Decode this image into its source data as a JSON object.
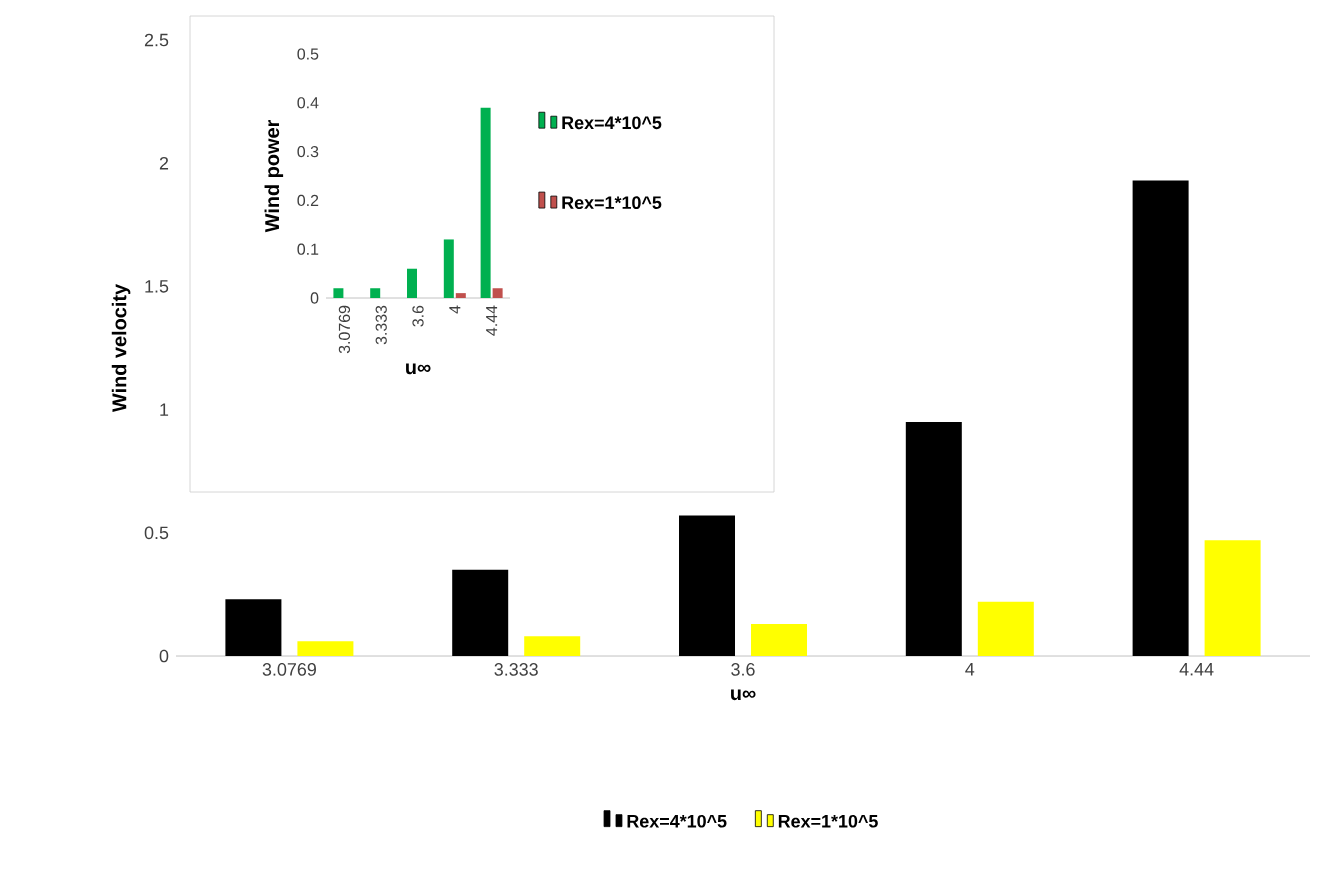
{
  "chart_data": [
    {
      "type": "bar",
      "xlabel": "u∞",
      "ylabel": "Wind velocity",
      "categories": [
        "3.0769",
        "3.333",
        "3.6",
        "4",
        "4.44"
      ],
      "series": [
        {
          "name": "Rex=4*10^5",
          "color": "#000000",
          "values": [
            0.23,
            0.35,
            0.57,
            0.95,
            1.93
          ]
        },
        {
          "name": "Rex=1*10^5",
          "color": "#ffff00",
          "values": [
            0.06,
            0.08,
            0.13,
            0.22,
            0.47
          ]
        }
      ],
      "ylim": [
        0,
        2.5
      ],
      "yticks": [
        0,
        0.5,
        1,
        1.5,
        2,
        2.5
      ],
      "grid": false,
      "legend": "bottom"
    },
    {
      "type": "bar",
      "xlabel": "u∞",
      "ylabel": "Wind power",
      "categories": [
        "3.0769",
        "3.333",
        "3.6",
        "4",
        "4.44"
      ],
      "series": [
        {
          "name": "Rex=4*10^5",
          "color": "#00b050",
          "values": [
            0.02,
            0.02,
            0.06,
            0.12,
            0.39
          ]
        },
        {
          "name": "Rex=1*10^5",
          "color": "#c0504d",
          "values": [
            0,
            0,
            0,
            0.01,
            0.02
          ]
        }
      ],
      "ylim": [
        0,
        0.5
      ],
      "yticks": [
        0,
        0.1,
        0.2,
        0.3,
        0.4,
        0.5
      ],
      "grid": false,
      "legend": "right"
    }
  ]
}
